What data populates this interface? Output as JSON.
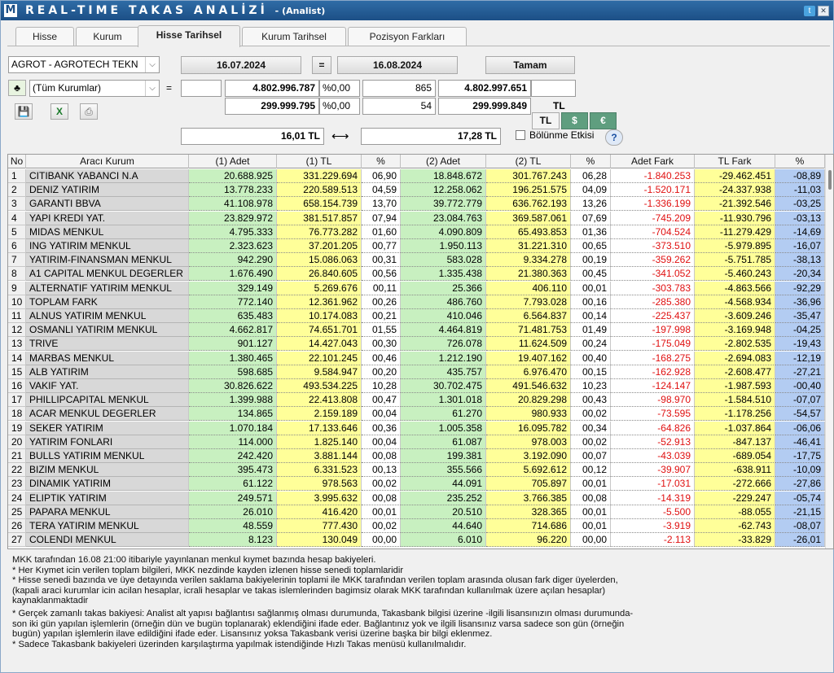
{
  "window": {
    "logo": "M",
    "title": "REAL-TIME TAKAS ANALİZİ",
    "subtitle": "- (Analist)",
    "twitter_icon": "twitter-icon",
    "close_icon": "close-icon"
  },
  "tabs": [
    {
      "label": "Hisse",
      "active": false
    },
    {
      "label": "Kurum",
      "active": false
    },
    {
      "label": "Hisse Tarihsel",
      "active": true
    },
    {
      "label": "Kurum Tarihsel",
      "active": false
    },
    {
      "label": "Pozisyon Farkları",
      "active": false
    }
  ],
  "filters": {
    "stock": "AGROT - AGROTECH TEKN",
    "date_start": "16.07.2024",
    "eq": "=",
    "date_end": "16.08.2024",
    "ok_label": "Tamam",
    "institution": "(Tüm Kurumlar)",
    "eq2": "=",
    "row1": {
      "empty1": "",
      "tl1": "4.802.996.787",
      "pct1": "%0,00",
      "count": "865",
      "tl2": "4.802.997.651",
      "empty2": ""
    },
    "row2": {
      "tl1": "299.999.795",
      "pct1": "%0,00",
      "count": "54",
      "tl2": "299.999.849"
    },
    "currency_label": "TL",
    "currency_buttons": [
      "TL",
      "$",
      "€"
    ],
    "price_start": "16,01 TL",
    "arrow": "⟷",
    "price_end": "17,28 TL",
    "split_label": "Bölünme Etkisi",
    "help": "?"
  },
  "table": {
    "columns": [
      "No",
      "Aracı Kurum",
      "(1) Adet",
      "(1) TL",
      "%",
      "(2) Adet",
      "(2) TL",
      "%",
      "Adet Fark",
      "TL Fark",
      "%"
    ],
    "rows": [
      [
        "1",
        "CITIBANK YABANCI N.A",
        "20.688.925",
        "331.229.694",
        "06,90",
        "18.848.672",
        "301.767.243",
        "06,28",
        "-1.840.253",
        "-29.462.451",
        "-08,89"
      ],
      [
        "2",
        "DENIZ YATIRIM",
        "13.778.233",
        "220.589.513",
        "04,59",
        "12.258.062",
        "196.251.575",
        "04,09",
        "-1.520.171",
        "-24.337.938",
        "-11,03"
      ],
      [
        "3",
        "GARANTI BBVA",
        "41.108.978",
        "658.154.739",
        "13,70",
        "39.772.779",
        "636.762.193",
        "13,26",
        "-1.336.199",
        "-21.392.546",
        "-03,25"
      ],
      [
        "4",
        "YAPI KREDI YAT.",
        "23.829.972",
        "381.517.857",
        "07,94",
        "23.084.763",
        "369.587.061",
        "07,69",
        "-745.209",
        "-11.930.796",
        "-03,13"
      ],
      [
        "5",
        "MIDAS MENKUL",
        "4.795.333",
        "76.773.282",
        "01,60",
        "4.090.809",
        "65.493.853",
        "01,36",
        "-704.524",
        "-11.279.429",
        "-14,69"
      ],
      [
        "6",
        "ING YATIRIM MENKUL",
        "2.323.623",
        "37.201.205",
        "00,77",
        "1.950.113",
        "31.221.310",
        "00,65",
        "-373.510",
        "-5.979.895",
        "-16,07"
      ],
      [
        "7",
        "YATIRIM-FINANSMAN MENKUL",
        "942.290",
        "15.086.063",
        "00,31",
        "583.028",
        "9.334.278",
        "00,19",
        "-359.262",
        "-5.751.785",
        "-38,13"
      ],
      [
        "8",
        "A1 CAPITAL MENKUL DEGERLER",
        "1.676.490",
        "26.840.605",
        "00,56",
        "1.335.438",
        "21.380.363",
        "00,45",
        "-341.052",
        "-5.460.243",
        "-20,34"
      ],
      [
        "9",
        "ALTERNATIF YATIRIM MENKUL",
        "329.149",
        "5.269.676",
        "00,11",
        "25.366",
        "406.110",
        "00,01",
        "-303.783",
        "-4.863.566",
        "-92,29"
      ],
      [
        "10",
        "TOPLAM FARK",
        "772.140",
        "12.361.962",
        "00,26",
        "486.760",
        "7.793.028",
        "00,16",
        "-285.380",
        "-4.568.934",
        "-36,96"
      ],
      [
        "11",
        "ALNUS YATIRIM MENKUL",
        "635.483",
        "10.174.083",
        "00,21",
        "410.046",
        "6.564.837",
        "00,14",
        "-225.437",
        "-3.609.246",
        "-35,47"
      ],
      [
        "12",
        "OSMANLI YATIRIM MENKUL",
        "4.662.817",
        "74.651.701",
        "01,55",
        "4.464.819",
        "71.481.753",
        "01,49",
        "-197.998",
        "-3.169.948",
        "-04,25"
      ],
      [
        "13",
        "TRIVE",
        "901.127",
        "14.427.043",
        "00,30",
        "726.078",
        "11.624.509",
        "00,24",
        "-175.049",
        "-2.802.535",
        "-19,43"
      ],
      [
        "14",
        "MARBAS MENKUL",
        "1.380.465",
        "22.101.245",
        "00,46",
        "1.212.190",
        "19.407.162",
        "00,40",
        "-168.275",
        "-2.694.083",
        "-12,19"
      ],
      [
        "15",
        "ALB YATIRIM",
        "598.685",
        "9.584.947",
        "00,20",
        "435.757",
        "6.976.470",
        "00,15",
        "-162.928",
        "-2.608.477",
        "-27,21"
      ],
      [
        "16",
        "VAKIF YAT.",
        "30.826.622",
        "493.534.225",
        "10,28",
        "30.702.475",
        "491.546.632",
        "10,23",
        "-124.147",
        "-1.987.593",
        "-00,40"
      ],
      [
        "17",
        "PHILLIPCAPITAL MENKUL",
        "1.399.988",
        "22.413.808",
        "00,47",
        "1.301.018",
        "20.829.298",
        "00,43",
        "-98.970",
        "-1.584.510",
        "-07,07"
      ],
      [
        "18",
        "ACAR MENKUL DEGERLER",
        "134.865",
        "2.159.189",
        "00,04",
        "61.270",
        "980.933",
        "00,02",
        "-73.595",
        "-1.178.256",
        "-54,57"
      ],
      [
        "19",
        "SEKER YATIRIM",
        "1.070.184",
        "17.133.646",
        "00,36",
        "1.005.358",
        "16.095.782",
        "00,34",
        "-64.826",
        "-1.037.864",
        "-06,06"
      ],
      [
        "20",
        "YATIRIM FONLARI",
        "114.000",
        "1.825.140",
        "00,04",
        "61.087",
        "978.003",
        "00,02",
        "-52.913",
        "-847.137",
        "-46,41"
      ],
      [
        "21",
        "BULLS YATIRIM MENKUL",
        "242.420",
        "3.881.144",
        "00,08",
        "199.381",
        "3.192.090",
        "00,07",
        "-43.039",
        "-689.054",
        "-17,75"
      ],
      [
        "22",
        "BIZIM MENKUL",
        "395.473",
        "6.331.523",
        "00,13",
        "355.566",
        "5.692.612",
        "00,12",
        "-39.907",
        "-638.911",
        "-10,09"
      ],
      [
        "23",
        "DINAMIK YATIRIM",
        "61.122",
        "978.563",
        "00,02",
        "44.091",
        "705.897",
        "00,01",
        "-17.031",
        "-272.666",
        "-27,86"
      ],
      [
        "24",
        "ELIPTIK YATIRIM",
        "249.571",
        "3.995.632",
        "00,08",
        "235.252",
        "3.766.385",
        "00,08",
        "-14.319",
        "-229.247",
        "-05,74"
      ],
      [
        "25",
        "PAPARA MENKUL",
        "26.010",
        "416.420",
        "00,01",
        "20.510",
        "328.365",
        "00,01",
        "-5.500",
        "-88.055",
        "-21,15"
      ],
      [
        "26",
        "TERA YATIRIM MENKUL",
        "48.559",
        "777.430",
        "00,02",
        "44.640",
        "714.686",
        "00,01",
        "-3.919",
        "-62.743",
        "-08,07"
      ],
      [
        "27",
        "COLENDI MENKUL",
        "8.123",
        "130.049",
        "00,00",
        "6.010",
        "96.220",
        "00,00",
        "-2.113",
        "-33.829",
        "-26,01"
      ]
    ]
  },
  "notes": [
    "MKK tarafından 16.08 21:00 itibariyle yayınlanan menkul kıymet bazında hesap bakiyeleri.",
    "* Her Kıymet icin verilen toplam bilgileri, MKK nezdinde kayden izlenen hisse senedi toplamlaridir",
    "* Hisse senedi bazında ve üye detayında verilen saklama bakiyelerinin toplami ile MKK tarafından verilen toplam arasında olusan fark diger üyelerden,",
    "(kapali araci kurumlar icin acilan hesaplar, icrali hesaplar ve takas islemlerinden bagimsiz olarak MKK tarafından kullanılmak üzere açılan hesaplar)",
    "kaynaklanmaktadir",
    "* Gerçek zamanlı takas bakiyesi: Analist alt yapısı bağlantısı sağlanmış olması durumunda, Takasbank bilgisi üzerine -ilgili lisansınızın olması durumunda-",
    "son iki gün yapılan işlemlerin (örneğin dün ve bugün toplanarak) eklendiğini ifade eder. Bağlantınız yok ve ilgili lisansınız varsa sadece son gün (örneğin",
    "bugün) yapılan işlemlerin ilave edildiğini ifade eder. Lisansınız yoksa Takasbank verisi üzerine başka bir bilgi eklenmez.",
    "* Sadece Takasbank bakiyeleri üzerinden karşılaştırma yapılmak istendiğinde Hızlı Takas menüsü kullanılmalıdır."
  ]
}
